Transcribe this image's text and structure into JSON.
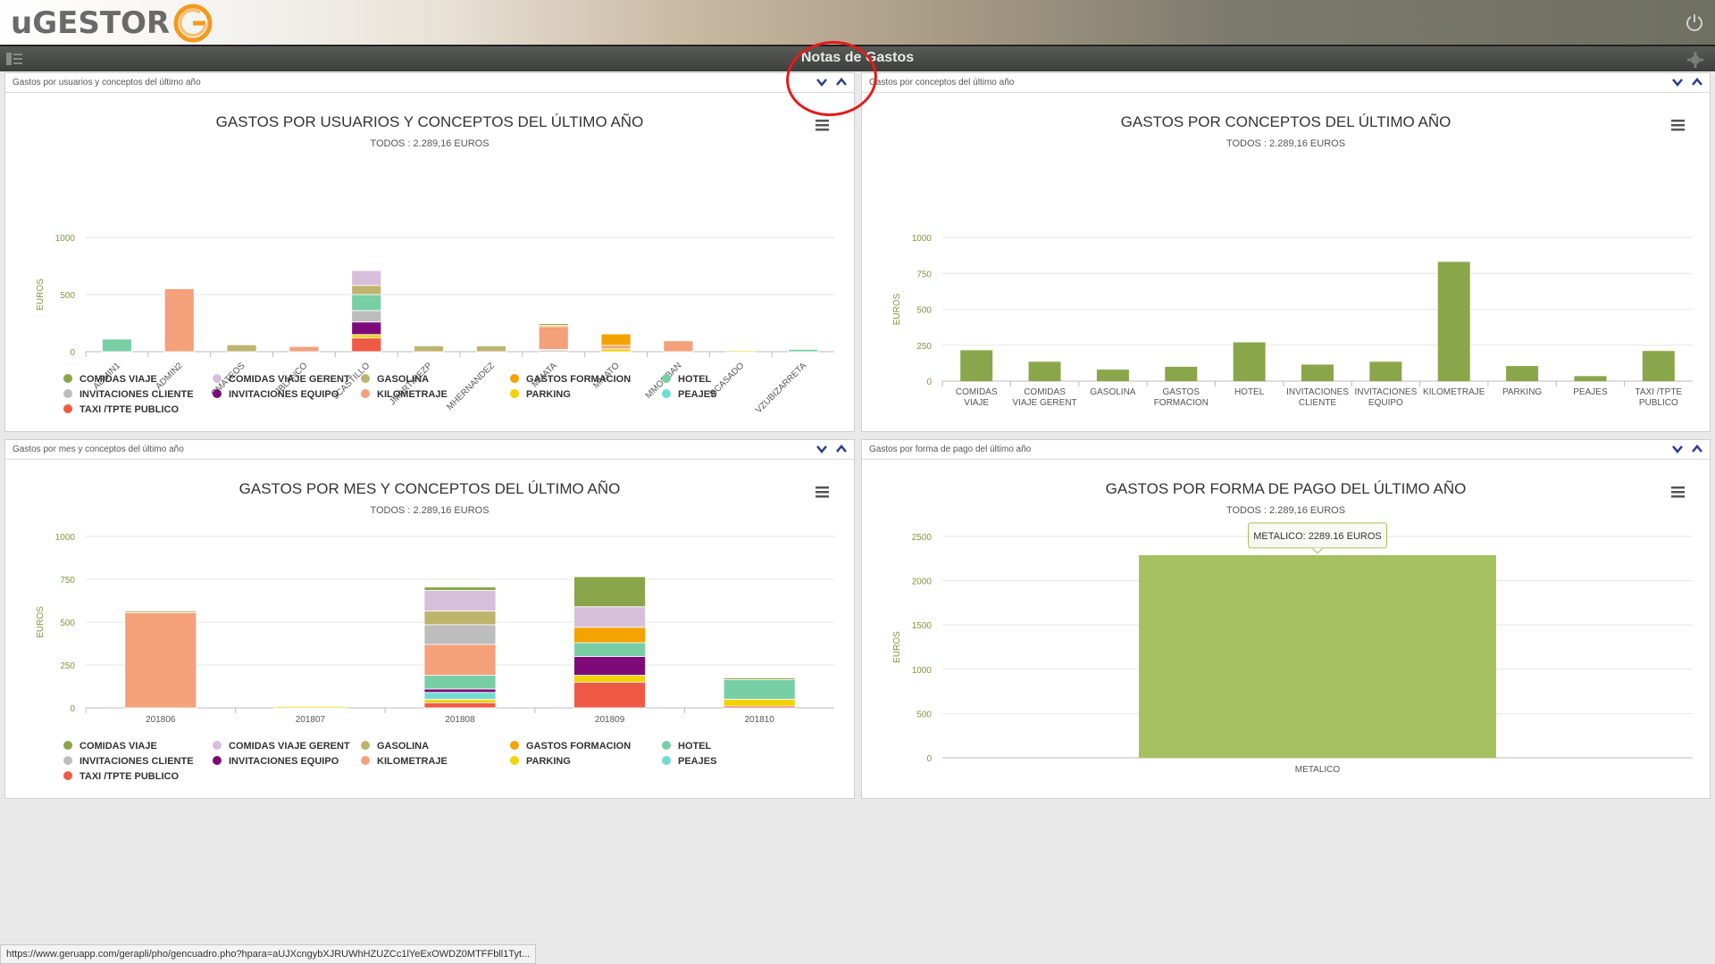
{
  "app": {
    "logo_text": "uGESTOR",
    "page_title": "Notas de Gastos",
    "status_url": "https://www.geruapp.com/gerapli/pho/gencuadro.pho?hpara=aUJXcngybXJRUWhHZUZCc1lYeExOWDZ0MTFFbll1Tyt..."
  },
  "colors": {
    "green": "#8aa64a",
    "light_green": "#a6c160",
    "axis_green": "#7a9a3a",
    "annotation": "#e51b1b"
  },
  "panels": [
    {
      "header": "Gastos por usuarios y conceptos del último año"
    },
    {
      "header": "Gastos por conceptos del último año"
    },
    {
      "header": "Gastos por mes y conceptos del último año"
    },
    {
      "header": "Gastos por forma de pago del último año"
    }
  ],
  "legend_items": [
    {
      "label": "COMIDAS VIAJE",
      "color": "#8aa64a"
    },
    {
      "label": "COMIDAS VIAJE GERENT",
      "color": "#d7bfdc"
    },
    {
      "label": "GASOLINA",
      "color": "#bfb46e"
    },
    {
      "label": "GASTOS FORMACION",
      "color": "#f5a300"
    },
    {
      "label": "HOTEL",
      "color": "#78cfa6"
    },
    {
      "label": "INVITACIONES CLIENTE",
      "color": "#bdbdbd"
    },
    {
      "label": "INVITACIONES EQUIPO",
      "color": "#7e0a7a"
    },
    {
      "label": "KILOMETRAJE",
      "color": "#f4a07a"
    },
    {
      "label": "PARKING",
      "color": "#f2d200"
    },
    {
      "label": "PEAJES",
      "color": "#6fdcd2"
    },
    {
      "label": "TAXI /TPTE PUBLICO",
      "color": "#ef5a46"
    }
  ],
  "chart_data": [
    {
      "type": "bar",
      "stacked": true,
      "title": "GASTOS POR USUARIOS Y CONCEPTOS DEL ÚLTIMO AÑO",
      "subtitle": "TODOS : 2.289,16 EUROS",
      "ylabel": "EUROS",
      "ylim": [
        0,
        1000
      ],
      "yticks": [
        "0",
        "500",
        "1000"
      ],
      "categories": [
        "ADMIN1",
        "ADMIN2",
        "CMATEOS",
        "JBLANCO",
        "JCASTILLO",
        "JMARTINEZP",
        "MHERNANDEZ",
        "MMATA",
        "MMATO",
        "MMORBAN",
        "RCASADO",
        "VZUBIZARRETA"
      ],
      "series": [
        {
          "name": "TAXI /TPTE PUBLICO",
          "values": [
            0,
            0,
            0,
            0,
            120,
            0,
            0,
            10,
            0,
            0,
            0,
            0
          ]
        },
        {
          "name": "PARKING",
          "values": [
            0,
            0,
            0,
            0,
            30,
            0,
            0,
            0,
            25,
            0,
            10,
            0
          ]
        },
        {
          "name": "INVITACIONES EQUIPO",
          "values": [
            0,
            0,
            0,
            0,
            110,
            0,
            0,
            0,
            0,
            0,
            0,
            0
          ]
        },
        {
          "name": "INVITACIONES CLIENTE",
          "values": [
            0,
            0,
            0,
            0,
            100,
            0,
            0,
            0,
            0,
            0,
            0,
            0
          ]
        },
        {
          "name": "HOTEL",
          "values": [
            110,
            0,
            0,
            0,
            140,
            0,
            0,
            0,
            0,
            0,
            0,
            20
          ]
        },
        {
          "name": "PEAJES",
          "values": [
            0,
            0,
            0,
            0,
            0,
            0,
            0,
            10,
            0,
            0,
            0,
            0
          ]
        },
        {
          "name": "GASOLINA",
          "values": [
            0,
            0,
            60,
            0,
            80,
            50,
            50,
            0,
            0,
            0,
            0,
            0
          ]
        },
        {
          "name": "KILOMETRAJE",
          "values": [
            0,
            550,
            0,
            45,
            0,
            0,
            0,
            200,
            30,
            95,
            0,
            0
          ]
        },
        {
          "name": "GASTOS FORMACION",
          "values": [
            0,
            0,
            0,
            0,
            0,
            0,
            0,
            10,
            100,
            0,
            0,
            0
          ]
        },
        {
          "name": "COMIDAS VIAJE GERENT",
          "values": [
            0,
            0,
            0,
            0,
            130,
            0,
            0,
            0,
            0,
            0,
            0,
            0
          ]
        },
        {
          "name": "COMIDAS VIAJE",
          "values": [
            0,
            0,
            0,
            0,
            0,
            0,
            0,
            15,
            0,
            0,
            0,
            0
          ]
        }
      ]
    },
    {
      "type": "bar",
      "title": "GASTOS POR CONCEPTOS DEL ÚLTIMO AÑO",
      "subtitle": "TODOS : 2.289,16 EUROS",
      "ylabel": "EUROS",
      "ylim": [
        0,
        1000
      ],
      "yticks": [
        "0",
        "250",
        "500",
        "750",
        "1000"
      ],
      "categories": [
        [
          "COMIDAS",
          "VIAJE"
        ],
        [
          "COMIDAS",
          "VIAJE GERENT"
        ],
        [
          "GASOLINA"
        ],
        [
          "GASTOS",
          "FORMACION"
        ],
        [
          "HOTEL"
        ],
        [
          "INVITACIONES",
          "CLIENTE"
        ],
        [
          "INVITACIONES",
          "EQUIPO"
        ],
        [
          "KILOMETRAJE"
        ],
        [
          "PARKING"
        ],
        [
          "PEAJES"
        ],
        [
          "TAXI /TPTE",
          "PUBLICO"
        ]
      ],
      "values": [
        215,
        135,
        80,
        100,
        270,
        115,
        135,
        830,
        105,
        35,
        210
      ]
    },
    {
      "type": "bar",
      "stacked": true,
      "title": "GASTOS POR MES Y CONCEPTOS DEL ÚLTIMO AÑO",
      "subtitle": "TODOS : 2.289,16 EUROS",
      "ylabel": "EUROS",
      "ylim": [
        0,
        1000
      ],
      "yticks": [
        "0",
        "250",
        "500",
        "750",
        "1000"
      ],
      "categories": [
        "201806",
        "201807",
        "201808",
        "201809",
        "201810"
      ],
      "series": [
        {
          "name": "TAXI /TPTE PUBLICO",
          "values": [
            0,
            0,
            30,
            150,
            10
          ]
        },
        {
          "name": "PARKING",
          "values": [
            0,
            8,
            20,
            40,
            40
          ]
        },
        {
          "name": "PEAJES",
          "values": [
            0,
            0,
            40,
            0,
            0
          ]
        },
        {
          "name": "INVITACIONES EQUIPO",
          "values": [
            0,
            0,
            20,
            110,
            0
          ]
        },
        {
          "name": "HOTEL",
          "values": [
            0,
            0,
            80,
            80,
            115
          ]
        },
        {
          "name": "GASTOS FORMACION",
          "values": [
            0,
            0,
            0,
            90,
            0
          ]
        },
        {
          "name": "KILOMETRAJE",
          "values": [
            555,
            0,
            180,
            0,
            0
          ]
        },
        {
          "name": "INVITACIONES CLIENTE",
          "values": [
            0,
            0,
            115,
            0,
            0
          ]
        },
        {
          "name": "GASOLINA",
          "values": [
            10,
            0,
            80,
            0,
            0
          ]
        },
        {
          "name": "COMIDAS VIAJE GERENT",
          "values": [
            0,
            0,
            120,
            120,
            0
          ]
        },
        {
          "name": "COMIDAS VIAJE",
          "values": [
            5,
            0,
            20,
            175,
            10
          ]
        }
      ]
    },
    {
      "type": "bar",
      "title": "GASTOS POR FORMA DE PAGO DEL ÚLTIMO AÑO",
      "subtitle": "TODOS : 2.289,16 EUROS",
      "ylabel": "EUROS",
      "ylim": [
        0,
        2500
      ],
      "yticks": [
        "0",
        "500",
        "1000",
        "1500",
        "2000",
        "2500"
      ],
      "categories": [
        "METALICO"
      ],
      "values": [
        2289.16
      ],
      "tooltip": "METALICO: 2289.16 EUROS"
    }
  ]
}
